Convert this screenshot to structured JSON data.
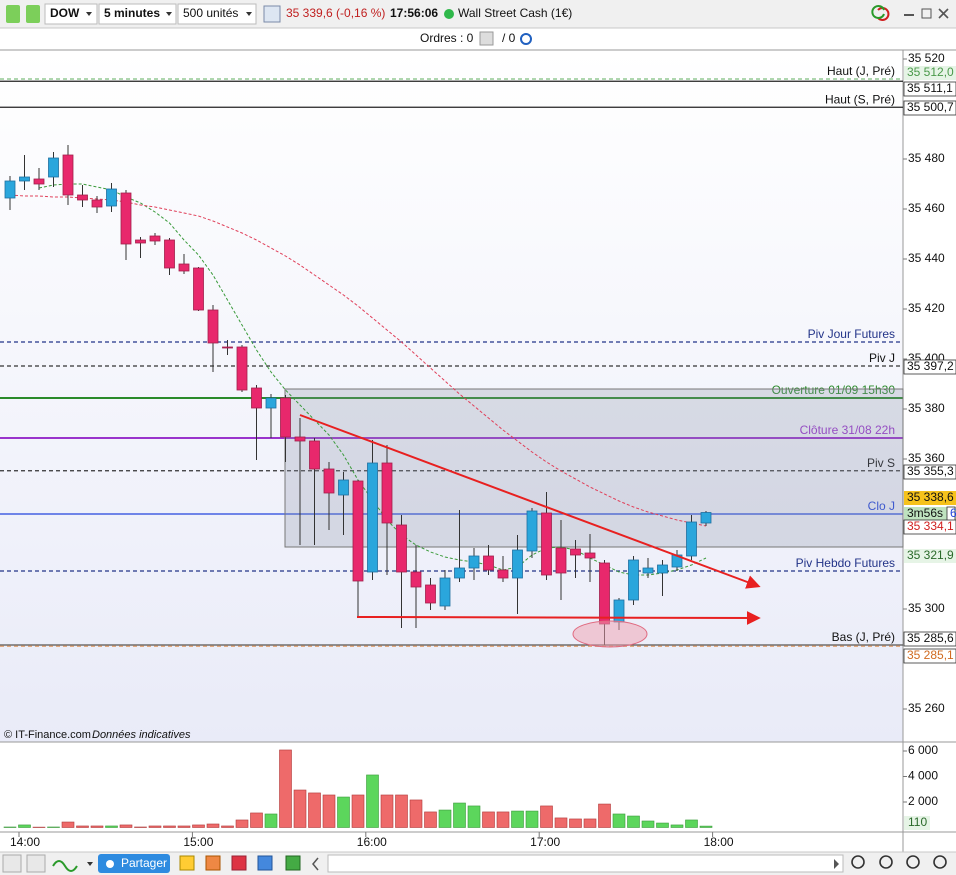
{
  "toolbar": {
    "symbol": "DOW",
    "period": "5 minutes",
    "size": "500 unités",
    "quote": "35 339,6 (-0,16 %)",
    "time": "17:56:06",
    "instrument": "Wall Street Cash (1€)",
    "share": "Partager"
  },
  "orders": {
    "label": "Ordres : 0",
    "pending": "/ 0"
  },
  "footer": {
    "source": "© IT-Finance.com",
    "note": "Données indicatives"
  },
  "chart_data": [
    {
      "type": "candlestick",
      "up_color": "#2aa6dc",
      "down_color": "#e8286c",
      "open": [
        35464.4,
        35471.2,
        35472,
        35472.8,
        35481.6,
        35465.6,
        35463.6,
        35461.2,
        35466.4,
        35447.6,
        35449.2,
        35447.6,
        35438,
        35436.4,
        35419.6,
        35404.8,
        35404.8,
        35388.4,
        35380.4,
        35384.4,
        35368.8,
        35367.2,
        35356,
        35345.6,
        35351.2,
        35314.8,
        35358.4,
        35333.6,
        35314.8,
        35309.6,
        35301.2,
        35312.4,
        35316.4,
        35321.2,
        35315.6,
        35312.4,
        35323.2,
        35338.4,
        35324.4,
        35324,
        35322.4,
        35318.4,
        35294.8,
        35303.6,
        35314.4,
        35314.4,
        35316.8,
        35321.2,
        35334.4
      ],
      "high": [
        35473.2,
        35481.6,
        35476.4,
        35482.8,
        35485.6,
        35469.6,
        35465.2,
        35470.4,
        35467.6,
        35448.8,
        35450.4,
        35448.4,
        35442,
        35436.8,
        35421.6,
        35407.6,
        35405.6,
        35389.6,
        35386,
        35385.6,
        35376.4,
        35368.4,
        35358.8,
        35354.8,
        35351.6,
        35367.6,
        35365.6,
        35337.6,
        35325.6,
        35312.4,
        35315.6,
        35339.6,
        35324.4,
        35325.6,
        35321.2,
        35329.6,
        35340.4,
        35346.8,
        35335.6,
        35327.6,
        35330,
        35319.6,
        35304.4,
        35321.2,
        35320.4,
        35319.6,
        35323.6,
        35337.6,
        35339.2
      ],
      "low": [
        35459.6,
        35467.6,
        35467.6,
        35468.8,
        35461.6,
        35460.8,
        35458.4,
        35458.8,
        35439.6,
        35440.4,
        35445.6,
        35433.6,
        35434,
        35419.2,
        35394.8,
        35401.6,
        35386.8,
        35359.6,
        35368.4,
        35358.8,
        35325.6,
        35325.6,
        35331.6,
        35329.6,
        35296.8,
        35311.6,
        35313.6,
        35292.4,
        35292.4,
        35299.6,
        35299.6,
        35310.8,
        35311.6,
        35313.6,
        35310.8,
        35298,
        35320.4,
        35311.6,
        35303.6,
        35312.4,
        35310.8,
        35285.6,
        35291.6,
        35301.6,
        35312.4,
        35305.2,
        35315.2,
        35319.6,
        35333.2
      ],
      "close": [
        35471.2,
        35472.8,
        35470,
        35480.4,
        35465.6,
        35463.6,
        35460.8,
        35468,
        35446,
        35446.4,
        35447.2,
        35436.4,
        35435.2,
        35419.6,
        35406.4,
        35404.4,
        35387.6,
        35380.4,
        35384.4,
        35368.8,
        35367.2,
        35356,
        35346.4,
        35351.6,
        35311.2,
        35358.4,
        35334.4,
        35314.8,
        35308.8,
        35302.4,
        35312.4,
        35316.4,
        35321.2,
        35315.6,
        35312.4,
        35323.6,
        35339.2,
        35313.6,
        35314.4,
        35321.6,
        35320.4,
        35294,
        35303.6,
        35319.6,
        35316.4,
        35317.6,
        35321.6,
        35334.8,
        35338.6
      ],
      "overlays": [
        {
          "color": "#3a9a3a",
          "values": [
            null,
            null,
            35468.4,
            35469.6,
            35470,
            35470,
            35468.8,
            35467.6,
            35464.8,
            35462.4,
            35458.8,
            35454.4,
            35447.6,
            35441.6,
            35433.6,
            35423.6,
            35413.6,
            35403.6,
            35394.8,
            35387.6,
            35381.6,
            35375.6,
            35369.6,
            35361.6,
            35351.6,
            35343.6,
            35335.6,
            35329.6,
            35325.6,
            35322.8,
            35320.8,
            35319.6,
            35318.8,
            35317.6,
            35315.6,
            35316.8,
            35321.6,
            35324.4,
            35324.8,
            35323.6,
            35320.4,
            35317.6,
            35314.8,
            35313.6,
            35313.6,
            35314.4,
            35315.6,
            35317.6,
            35320.4
          ]
        },
        {
          "color": "#e0405a",
          "values": [
            35465.6,
            35465.2,
            35465.2,
            35464.8,
            35464.8,
            35464.4,
            35464,
            35463.6,
            35462.8,
            35461.6,
            35460.8,
            35459.6,
            35458.4,
            35457.2,
            35455.2,
            35452.8,
            35450.4,
            35447.6,
            35444.4,
            35441.2,
            35437.6,
            35433.6,
            35429.6,
            35425.6,
            35421.2,
            35416.4,
            35411.6,
            35406.8,
            35401.6,
            35396.4,
            35391.2,
            35386,
            35381.2,
            35376.4,
            35371.6,
            35367.2,
            35362.8,
            35358.8,
            35355.2,
            35352,
            35348.8,
            35346,
            35343.2,
            35340.8,
            35338.8,
            35337.2,
            35335.6,
            35334.4,
            35333.2
          ]
        }
      ],
      "levels": [
        {
          "name": "Haut (J, Pré)",
          "value": 35512.0,
          "color": "#7fbf7f",
          "label_color": "#111",
          "dashed": true
        },
        {
          "value": 35511.1,
          "color": "#222",
          "dashed": false
        },
        {
          "name": "Haut (S, Pré)",
          "value": 35500.7,
          "color": "#222",
          "label_color": "#111",
          "dashed": false
        },
        {
          "name": "Piv Jour Futures",
          "value": 35406.8,
          "color": "#223388",
          "label_color": "#223388",
          "dashed": true
        },
        {
          "name": "Piv J",
          "value": 35397.2,
          "color": "#333",
          "label_color": "#111",
          "dashed": true
        },
        {
          "name": "Ouverture 01/09 15h30",
          "value": 35384.4,
          "color": "#2a8a2a",
          "label_color": "#2a8a2a",
          "dashed": false
        },
        {
          "name": "Clôture 31/08 22h",
          "value": 35368.4,
          "color": "#9933cc",
          "label_color": "#9933cc",
          "dashed": false
        },
        {
          "name": "Piv S",
          "value": 35355.3,
          "color": "#333",
          "label_color": "#111",
          "dashed": true
        },
        {
          "name": "Clo J",
          "value": 35338.0,
          "color": "#2244dd",
          "label_color": "#2244dd",
          "dashed": false
        },
        {
          "name": "Piv Hebdo Futures",
          "value": 35315.2,
          "color": "#223388",
          "label_color": "#223388",
          "dashed": true
        },
        {
          "name": "Bas (J, Pré)",
          "value": 35285.6,
          "color": "#555",
          "label_color": "#111",
          "dashed": false
        },
        {
          "value": 35285.1,
          "color": "#e0a070",
          "dashed": true
        }
      ],
      "price_tags": [
        {
          "text": "35 512,0",
          "color": "#4a9a4a",
          "background": "#e6f4e6"
        },
        {
          "text": "35 511,1",
          "color": "#111",
          "background": "#fff"
        },
        {
          "text": "35 500,7",
          "color": "#111",
          "background": "#fff"
        },
        {
          "text": "35 397,2",
          "color": "#111",
          "background": "#fff"
        },
        {
          "text": "35 355,3",
          "color": "#111",
          "background": "#fff"
        },
        {
          "text": "35 338,6",
          "color": "#111",
          "background": "#f6c21c"
        },
        {
          "text": "3m56s",
          "color": "#111",
          "background": "#bfe3bf"
        },
        {
          "text": "6",
          "color": "#2244dd",
          "background": "#fff"
        },
        {
          "text": "35 334,1",
          "color": "#d02020",
          "background": "#fff"
        },
        {
          "text": "35 321,9",
          "color": "#2a6a2a",
          "background": "#e6f4e6"
        },
        {
          "text": "35 285,6",
          "color": "#111",
          "background": "#fff"
        },
        {
          "text": "35 285,1",
          "color": "#d06a20",
          "background": "#fff"
        }
      ],
      "ylim": [
        35246.8,
        35523.6
      ],
      "yticks": [
        {
          "value": 35520,
          "label": "35 520"
        },
        {
          "value": 35480,
          "label": "35 480"
        },
        {
          "value": 35460,
          "label": "35 460"
        },
        {
          "value": 35440,
          "label": "35 440"
        },
        {
          "value": 35420,
          "label": "35 420"
        },
        {
          "value": 35400,
          "label": "35 400"
        },
        {
          "value": 35380,
          "label": "35 380"
        },
        {
          "value": 35360,
          "label": "35 360"
        },
        {
          "value": 35300,
          "label": "35 300"
        },
        {
          "value": 35260,
          "label": "35 260"
        }
      ],
      "time_labels": [
        "14:00",
        "15:00",
        "16:00",
        "17:00",
        "18:00"
      ]
    },
    {
      "type": "bar",
      "up_color": "#5cd65c",
      "down_color": "#ee6a6a",
      "values": [
        40,
        200,
        30,
        40,
        430,
        120,
        120,
        120,
        200,
        40,
        120,
        120,
        120,
        200,
        275,
        120,
        590,
        1140,
        1060,
        6080,
        2940,
        2710,
        2550,
        2390,
        2550,
        4120,
        2550,
        2550,
        2160,
        1220,
        1370,
        1920,
        1690,
        1220,
        1220,
        1290,
        1290,
        1690,
        750,
        670,
        670,
        1840,
        1060,
        900,
        510,
        350,
        200,
        590,
        110
      ],
      "value_tag": "110",
      "ylim": [
        -353,
        6706
      ],
      "yticks": [
        {
          "value": 6000,
          "label": "6 000"
        },
        {
          "value": 4000,
          "label": "4 000"
        },
        {
          "value": 2000,
          "label": "2 000"
        }
      ]
    }
  ]
}
